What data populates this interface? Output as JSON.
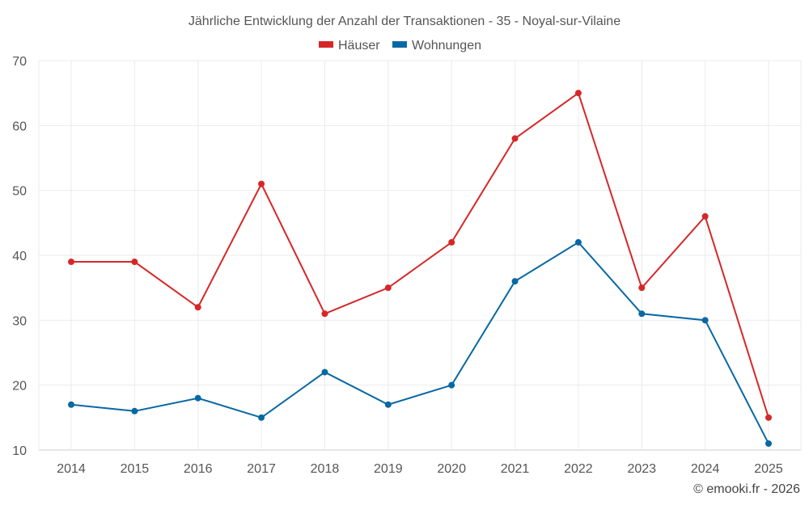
{
  "chart_data": {
    "type": "line",
    "title": "Jährliche Entwicklung der Anzahl der Transaktionen - 35 - Noyal-sur-Vilaine",
    "categories": [
      "2014",
      "2015",
      "2016",
      "2017",
      "2018",
      "2019",
      "2020",
      "2021",
      "2022",
      "2023",
      "2024",
      "2025"
    ],
    "series": [
      {
        "name": "Häuser",
        "color": "#d62728",
        "values": [
          39,
          39,
          32,
          51,
          31,
          35,
          42,
          58,
          65,
          35,
          46,
          15
        ]
      },
      {
        "name": "Wohnungen",
        "color": "#0868a4",
        "values": [
          17,
          16,
          18,
          15,
          22,
          17,
          20,
          36,
          42,
          31,
          30,
          11
        ]
      }
    ],
    "ylim": [
      10,
      70
    ],
    "yticks": [
      "10",
      "20",
      "30",
      "40",
      "50",
      "60",
      "70"
    ],
    "xlabel": "",
    "ylabel": "",
    "grid": true,
    "legend": "top-center"
  },
  "credit": "© emooki.fr - 2026"
}
